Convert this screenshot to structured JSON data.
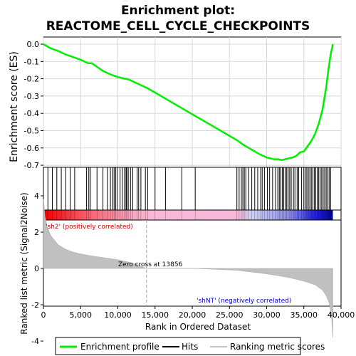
{
  "chart_data": {
    "type": "line",
    "title_line1": "Enrichment plot:",
    "title_line2": "REACTOME_CELL_CYCLE_CHECKPOINTS",
    "xlabel": "Rank in Ordered Dataset",
    "es_ylabel": "Enrichment score (ES)",
    "metric_ylabel": "Ranked list metric (Signal2Noise)",
    "xlim": [
      0,
      40000
    ],
    "es_ylim": [
      -0.72,
      0.02
    ],
    "metric_ylim": [
      -4,
      4
    ],
    "x_ticks": [
      0,
      5000,
      10000,
      15000,
      20000,
      25000,
      30000,
      35000,
      40000
    ],
    "x_tick_labels": [
      "0",
      "5,000",
      "10,000",
      "15,000",
      "20,000",
      "25,000",
      "30,000",
      "35,000",
      "40,000"
    ],
    "es_ticks": [
      0.0,
      -0.1,
      -0.2,
      -0.3,
      -0.4,
      -0.5,
      -0.6,
      -0.7
    ],
    "es_tick_labels": [
      "0.0",
      "-0.1",
      "-0.2",
      "-0.3",
      "-0.4",
      "-0.5",
      "-0.6",
      "-0.7"
    ],
    "metric_ticks": [
      4,
      2,
      0,
      -2,
      -4
    ],
    "metric_tick_labels": [
      "4",
      "2",
      "0",
      "-2",
      "-4"
    ],
    "series": [
      {
        "name": "Enrichment profile",
        "color": "#00ee00",
        "x": [
          0,
          1000,
          2000,
          3000,
          4000,
          5000,
          6000,
          6500,
          7000,
          8000,
          9000,
          10000,
          11000,
          11500,
          12000,
          13000,
          14000,
          15000,
          16000,
          18000,
          20000,
          22000,
          24000,
          26000,
          27000,
          28000,
          29000,
          30000,
          31000,
          31500,
          32000,
          33000,
          33500,
          34000,
          34500,
          35000,
          35500,
          36000,
          36500,
          37000,
          37500,
          38000,
          38300,
          38600,
          38800,
          38900
        ],
        "y": [
          0.0,
          -0.025,
          -0.04,
          -0.06,
          -0.075,
          -0.09,
          -0.11,
          -0.11,
          -0.125,
          -0.155,
          -0.175,
          -0.19,
          -0.2,
          -0.205,
          -0.215,
          -0.235,
          -0.255,
          -0.28,
          -0.305,
          -0.355,
          -0.405,
          -0.455,
          -0.505,
          -0.555,
          -0.585,
          -0.61,
          -0.635,
          -0.655,
          -0.665,
          -0.665,
          -0.67,
          -0.66,
          -0.655,
          -0.645,
          -0.625,
          -0.62,
          -0.59,
          -0.56,
          -0.52,
          -0.46,
          -0.38,
          -0.25,
          -0.15,
          -0.06,
          -0.02,
          0.0
        ]
      }
    ],
    "hits_label": "Hits",
    "hits_color": "#000000",
    "hit_positions": [
      600,
      1200,
      1800,
      2400,
      3000,
      3600,
      4200,
      5800,
      6100,
      6300,
      7200,
      8000,
      8600,
      9000,
      9300,
      9500,
      9700,
      9900,
      10300,
      10600,
      10900,
      11100,
      11200,
      11400,
      11700,
      12000,
      12600,
      12800,
      13100,
      13700,
      14000,
      15000,
      16400,
      18600,
      20400,
      26000,
      26300,
      26600,
      26800,
      27000,
      27200,
      27600,
      28000,
      28400,
      28800,
      29200,
      29400,
      29700,
      30100,
      30400,
      30800,
      31200,
      31500,
      31700,
      31900,
      32100,
      32300,
      32500,
      32700,
      32900,
      33100,
      33300,
      33600,
      33800,
      34100,
      34300,
      34700,
      35000,
      35200,
      35400,
      35600,
      35800,
      36000,
      36200,
      36400,
      36600,
      36800,
      37000,
      37200,
      37400,
      37600,
      37800,
      38000,
      38200,
      38400,
      38600
    ],
    "metric_label": "Ranking metric scores",
    "metric_color": "#c0c0c0",
    "metric_curve": {
      "x": [
        0,
        200,
        500,
        1000,
        2000,
        3000,
        4000,
        5000,
        6000,
        8000,
        10000,
        12000,
        13856,
        16000,
        20000,
        26000,
        30000,
        33000,
        35000,
        36500,
        37500,
        38000,
        38400,
        38700,
        38900
      ],
      "y": [
        3.8,
        2.9,
        2.3,
        1.8,
        1.3,
        1.05,
        0.9,
        0.8,
        0.72,
        0.6,
        0.48,
        0.3,
        0.0,
        0.0,
        0.0,
        -0.1,
        -0.3,
        -0.5,
        -0.7,
        -0.9,
        -1.2,
        -1.5,
        -1.9,
        -2.6,
        -3.8
      ]
    },
    "zero_cross_text": "Zero cross at 13856",
    "zero_cross_x": 13856,
    "pos_label": "'sh2' (positively correlated)",
    "pos_color": "#cc0000",
    "neg_label": "'shNT' (negatively correlated)",
    "neg_color": "#0000cc",
    "bar_gradient_stops": [
      {
        "x": 0,
        "color": "#ee0000"
      },
      {
        "x": 6000,
        "color": "#f86070"
      },
      {
        "x": 12000,
        "color": "#f8a8c0"
      },
      {
        "x": 14500,
        "color": "#f8b8d8"
      },
      {
        "x": 26000,
        "color": "#f8b8d8"
      },
      {
        "x": 28000,
        "color": "#d0d0f0"
      },
      {
        "x": 33000,
        "color": "#9090f0"
      },
      {
        "x": 36000,
        "color": "#3030e0"
      },
      {
        "x": 38900,
        "color": "#0000aa"
      }
    ],
    "legend_position": "bottom"
  }
}
